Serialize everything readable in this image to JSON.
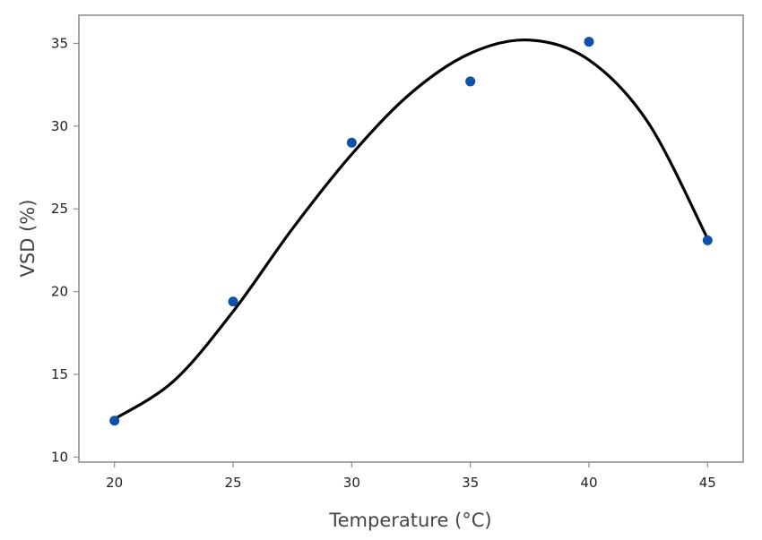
{
  "chart_data": {
    "type": "scatter",
    "xlabel": "Temperature (°C)",
    "ylabel": "VSD (%)",
    "xlim": [
      18.5,
      46.5
    ],
    "ylim": [
      9.7,
      36.7
    ],
    "x_ticks": [
      20,
      25,
      30,
      35,
      40,
      45
    ],
    "y_ticks": [
      10,
      15,
      20,
      25,
      30,
      35
    ],
    "grid": false,
    "series": [
      {
        "type": "scatter",
        "x": [
          20,
          25,
          30,
          35,
          40,
          45
        ],
        "y": [
          12.2,
          19.4,
          29.0,
          32.7,
          35.1,
          23.1
        ]
      },
      {
        "type": "line",
        "smooth": true,
        "x": [
          20,
          22.5,
          25,
          27.5,
          30,
          32.5,
          35,
          37.5,
          40,
          42.5,
          45
        ],
        "y": [
          12.3,
          14.6,
          18.8,
          23.8,
          28.3,
          32.0,
          34.4,
          35.2,
          34.0,
          30.2,
          23.2
        ]
      }
    ],
    "colors": {
      "points": "#0d52a8",
      "curve": "#000000",
      "frame": "#8a8a8a",
      "text": "#222222"
    }
  }
}
